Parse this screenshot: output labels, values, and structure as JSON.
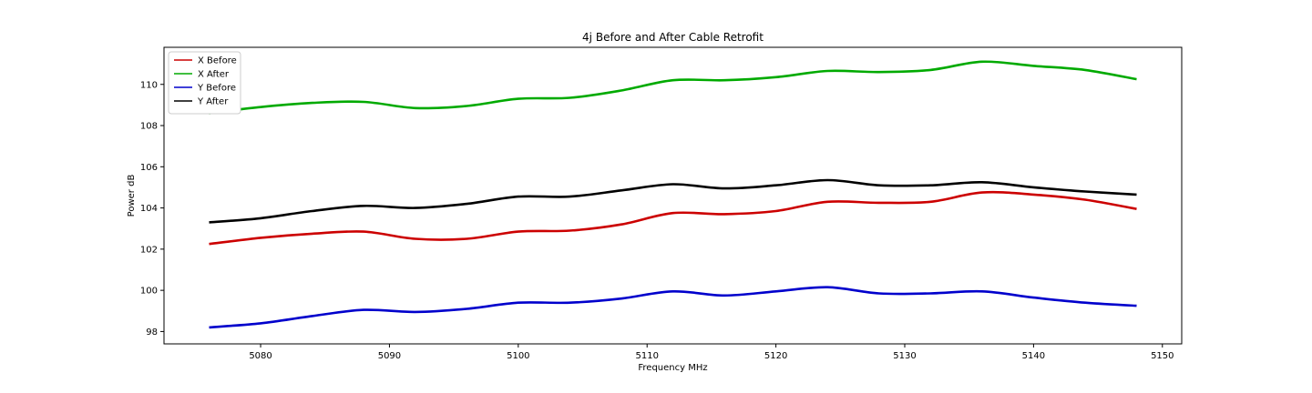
{
  "chart_data": {
    "type": "line",
    "title": "4j Before and After Cable Retrofit",
    "xlabel": "Frequency MHz",
    "ylabel": "Power dB",
    "xlim": [
      5072.5,
      5151.5
    ],
    "ylim": [
      97.4,
      111.8
    ],
    "xticks": [
      5080,
      5090,
      5100,
      5110,
      5120,
      5130,
      5140,
      5150
    ],
    "yticks": [
      98,
      100,
      102,
      104,
      106,
      108,
      110
    ],
    "grid": false,
    "legend_position": "top-left",
    "series": [
      {
        "name": "X Before",
        "color": "#cc0000",
        "x": [
          5076,
          5080,
          5084,
          5088,
          5092,
          5096,
          5100,
          5104,
          5108,
          5112,
          5116,
          5120,
          5124,
          5128,
          5132,
          5136,
          5140,
          5144,
          5148
        ],
        "y": [
          102.25,
          102.55,
          102.75,
          102.85,
          102.5,
          102.5,
          102.85,
          102.9,
          103.2,
          103.75,
          103.7,
          103.85,
          104.3,
          104.25,
          104.3,
          104.75,
          104.65,
          104.4,
          103.95
        ]
      },
      {
        "name": "X After",
        "color": "#00aa00",
        "x": [
          5076,
          5080,
          5084,
          5088,
          5092,
          5096,
          5100,
          5104,
          5108,
          5112,
          5116,
          5120,
          5124,
          5128,
          5132,
          5136,
          5140,
          5144,
          5148
        ],
        "y": [
          108.6,
          108.9,
          109.1,
          109.15,
          108.85,
          108.95,
          109.3,
          109.35,
          109.7,
          110.2,
          110.2,
          110.35,
          110.65,
          110.6,
          110.7,
          111.1,
          110.9,
          110.7,
          110.25
        ]
      },
      {
        "name": "Y Before",
        "color": "#0000cc",
        "x": [
          5076,
          5080,
          5084,
          5088,
          5092,
          5096,
          5100,
          5104,
          5108,
          5112,
          5116,
          5120,
          5124,
          5128,
          5132,
          5136,
          5140,
          5144,
          5148
        ],
        "y": [
          98.2,
          98.4,
          98.75,
          99.05,
          98.95,
          99.1,
          99.4,
          99.4,
          99.6,
          99.95,
          99.75,
          99.95,
          100.15,
          99.85,
          99.85,
          99.95,
          99.65,
          99.4,
          99.25
        ]
      },
      {
        "name": "Y After",
        "color": "#000000",
        "x": [
          5076,
          5080,
          5084,
          5088,
          5092,
          5096,
          5100,
          5104,
          5108,
          5112,
          5116,
          5120,
          5124,
          5128,
          5132,
          5136,
          5140,
          5144,
          5148
        ],
        "y": [
          103.3,
          103.5,
          103.85,
          104.1,
          104.0,
          104.2,
          104.55,
          104.55,
          104.85,
          105.15,
          104.95,
          105.1,
          105.35,
          105.1,
          105.1,
          105.25,
          105.0,
          104.8,
          104.65
        ]
      }
    ]
  }
}
